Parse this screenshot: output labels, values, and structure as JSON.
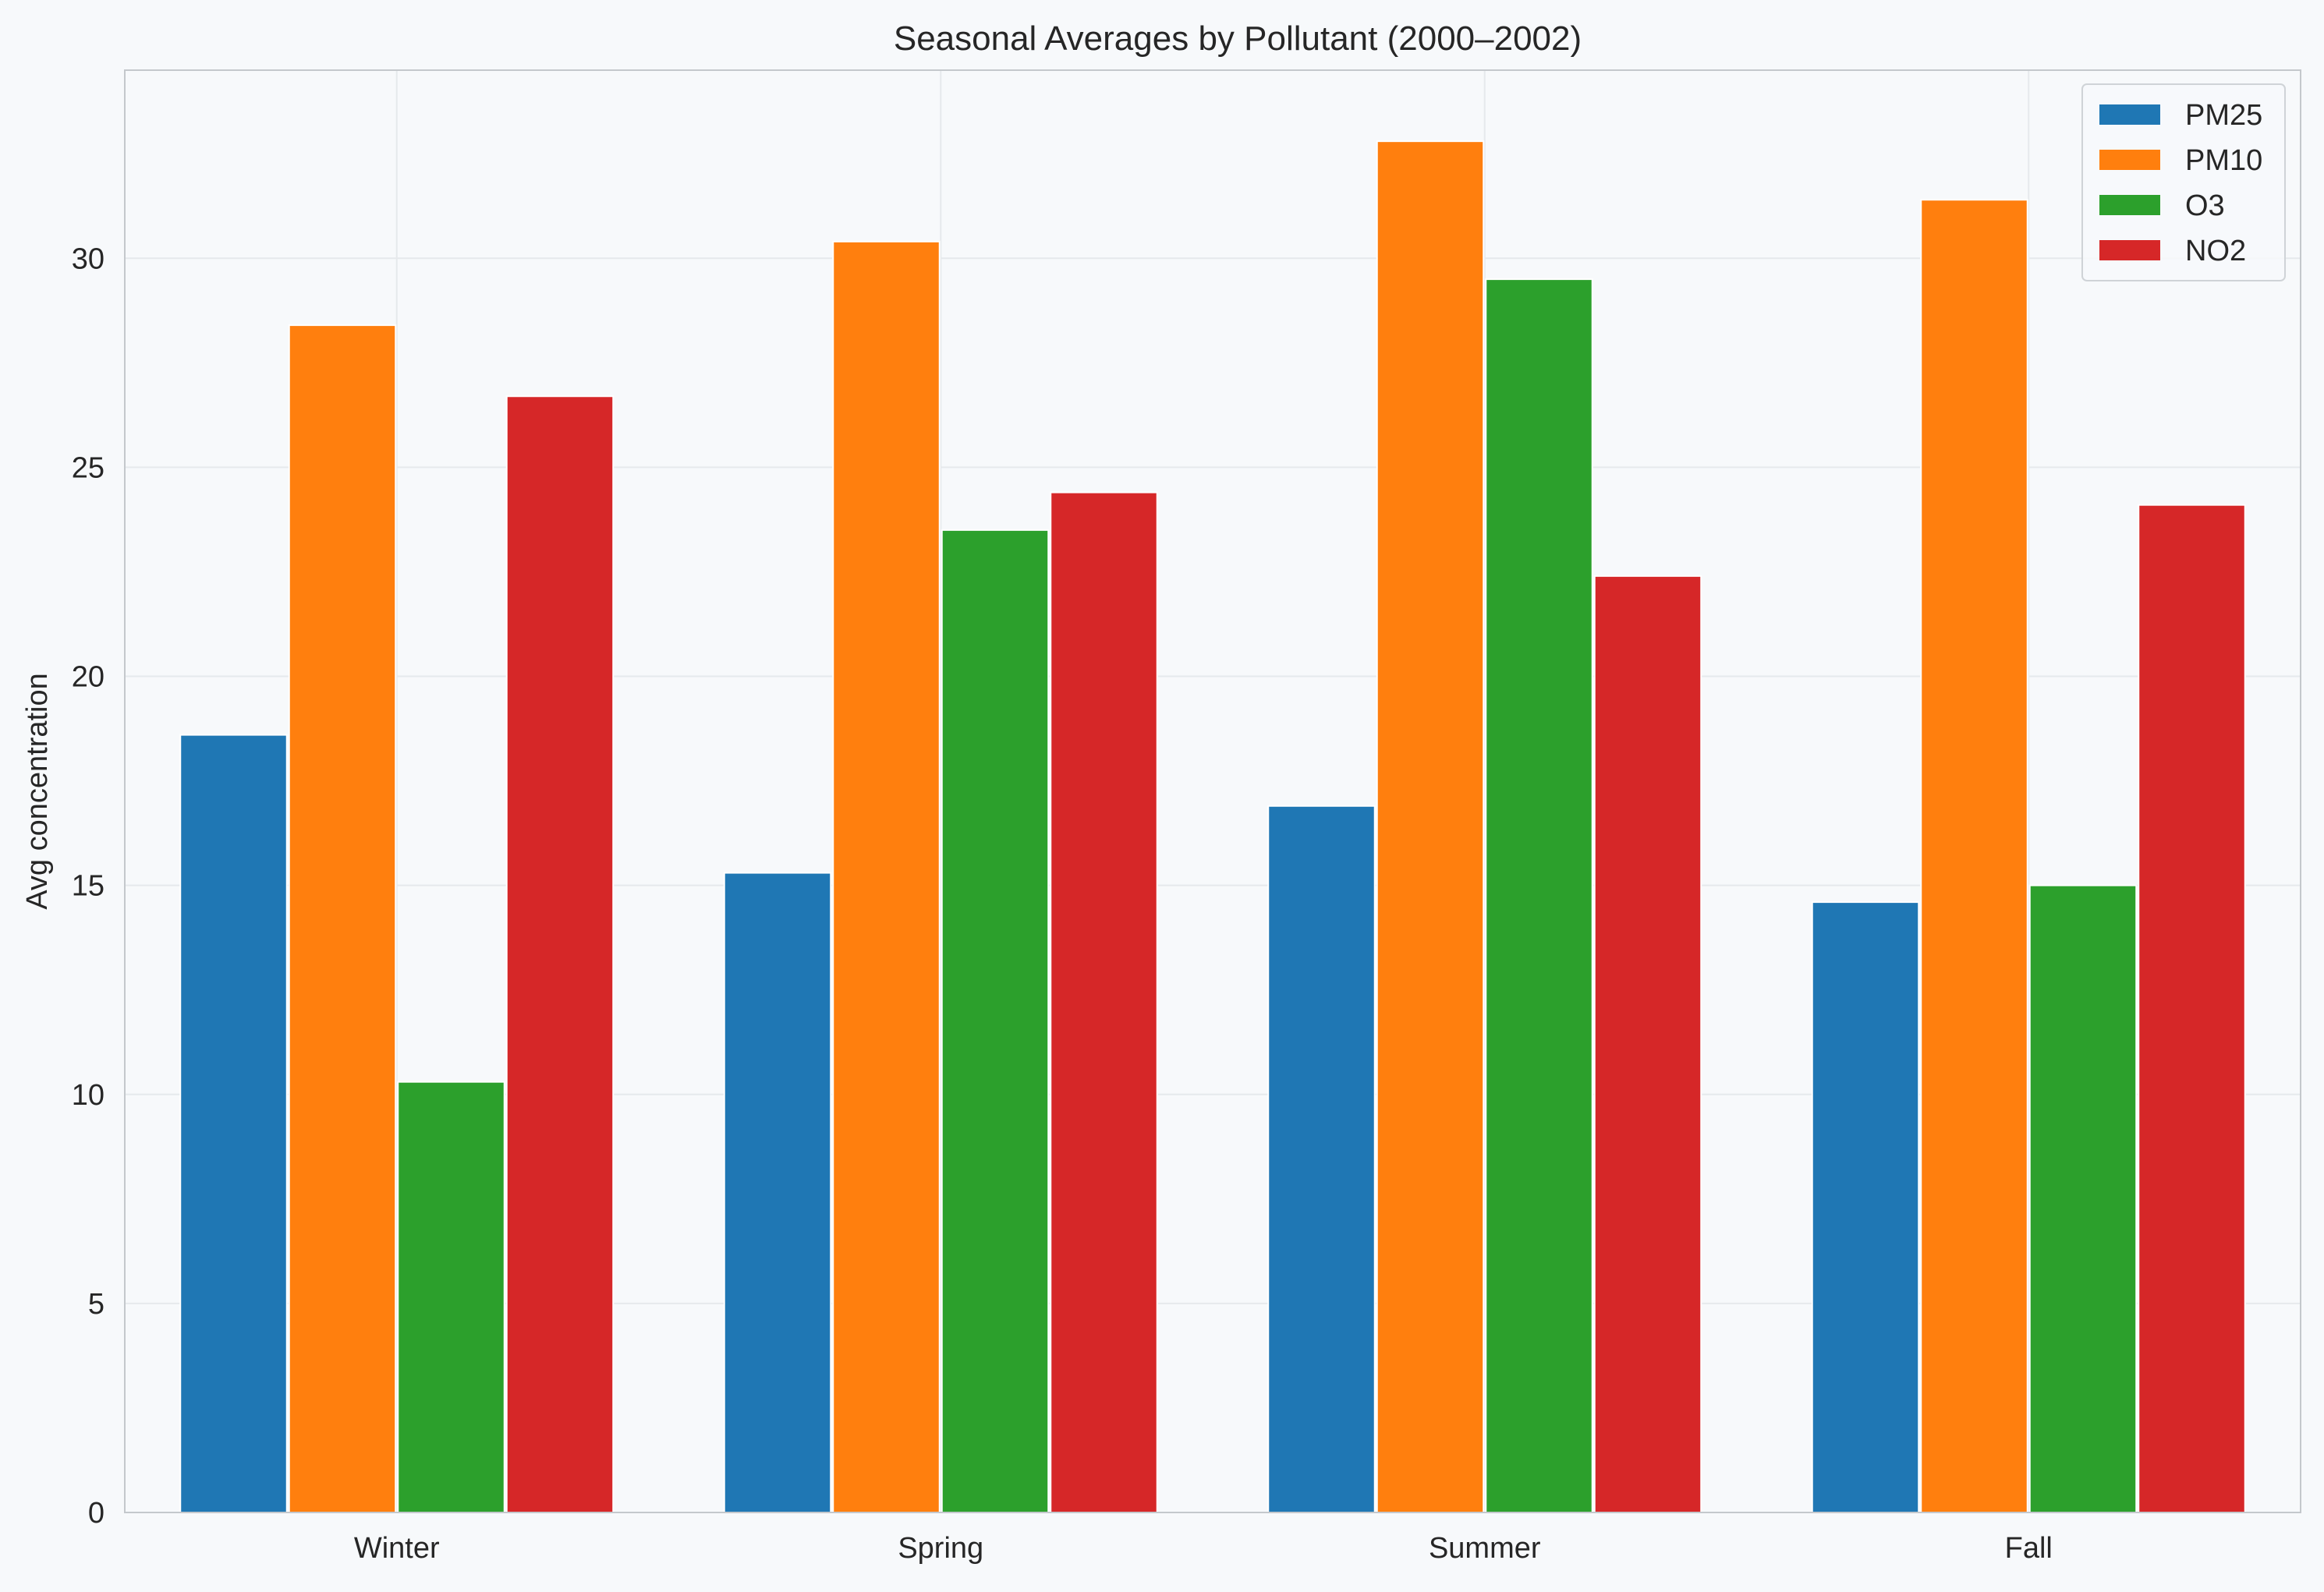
{
  "chart_data": {
    "type": "bar",
    "title": "Seasonal Averages by Pollutant (2000–2002)",
    "xlabel": "",
    "ylabel": "Avg concentration",
    "categories": [
      "Winter",
      "Spring",
      "Summer",
      "Fall"
    ],
    "series": [
      {
        "name": "PM25",
        "color": "#1f77b4",
        "values": [
          18.6,
          15.3,
          16.9,
          14.6
        ]
      },
      {
        "name": "PM10",
        "color": "#ff7f0e",
        "values": [
          28.4,
          30.4,
          32.8,
          31.4
        ]
      },
      {
        "name": "O3",
        "color": "#2ca02c",
        "values": [
          10.3,
          23.5,
          29.5,
          15.0
        ]
      },
      {
        "name": "NO2",
        "color": "#d62728",
        "values": [
          26.7,
          24.4,
          22.4,
          24.1
        ]
      }
    ],
    "ylim": [
      0,
      34.5
    ],
    "yticks": [
      0,
      5,
      10,
      15,
      20,
      25,
      30
    ],
    "grid": true,
    "legend_position": "top-right",
    "colors": {
      "background": "#f7f9fb",
      "grid": "#e6e9ec",
      "axes_edge": "#c4c8cc",
      "text": "#262626"
    }
  }
}
